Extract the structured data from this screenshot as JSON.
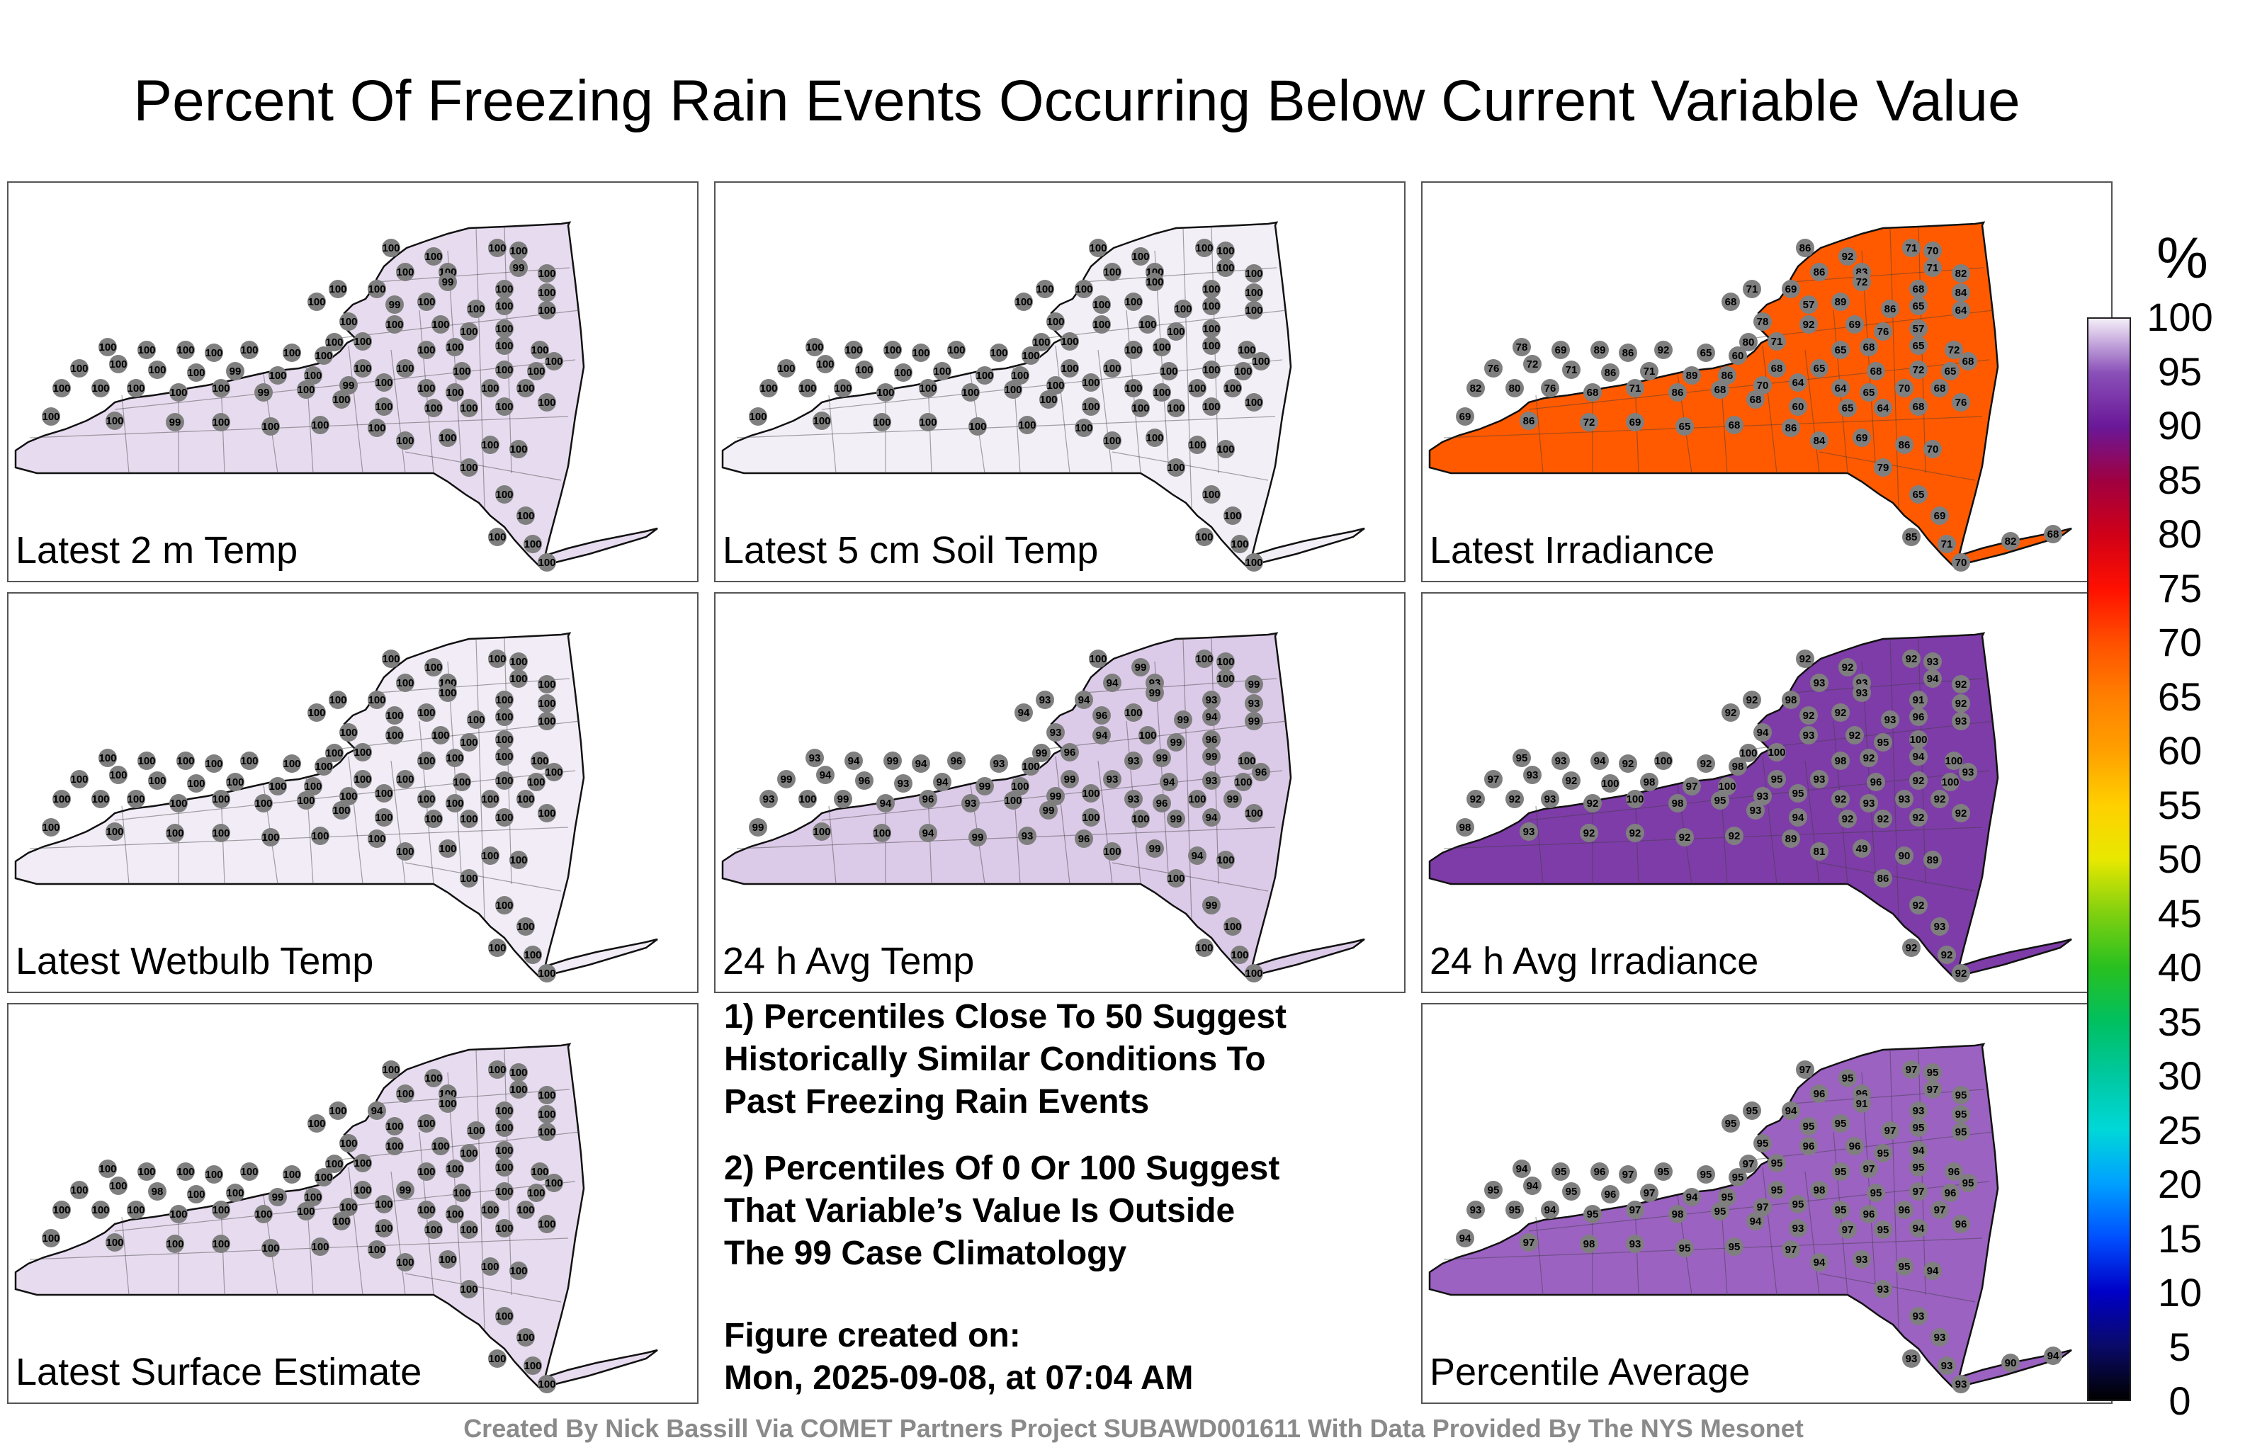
{
  "header": {
    "title": "Percent Of Freezing Rain Events Occurring Below Current Variable Value"
  },
  "panels": [
    {
      "label": "Latest 2 m Temp",
      "fill": "#e7dcef",
      "values": [
        100,
        100,
        100,
        100,
        100,
        100,
        99,
        100,
        100,
        100,
        99,
        100,
        100,
        100,
        99,
        100,
        100,
        100,
        100,
        100,
        100,
        100,
        100,
        100,
        100,
        100,
        100,
        100,
        100,
        100,
        100,
        100,
        100,
        100,
        100,
        100,
        100,
        100,
        100,
        100,
        100,
        100,
        100,
        100,
        100,
        100,
        100,
        99,
        100,
        100,
        99,
        100,
        100,
        100,
        100,
        100,
        100,
        100,
        100,
        100,
        100,
        99,
        100,
        100,
        100,
        100,
        100,
        100,
        100,
        100,
        100,
        99,
        100,
        100,
        100,
        100,
        100,
        100,
        100,
        100,
        100,
        100,
        100,
        100,
        100,
        100
      ]
    },
    {
      "label": "Latest 5 cm Soil Temp",
      "fill": "#f3eff7",
      "values": [
        100,
        100,
        100,
        100,
        100,
        100,
        100,
        100,
        100,
        100,
        100,
        100,
        100,
        100,
        100,
        100,
        100,
        100,
        100,
        100,
        100,
        100,
        100,
        100,
        100,
        100,
        100,
        100,
        100,
        100,
        100,
        100,
        100,
        100,
        100,
        100,
        100,
        100,
        100,
        100,
        100,
        100,
        100,
        100,
        100,
        100,
        100,
        100,
        100,
        100,
        100,
        100,
        100,
        100,
        100,
        100,
        100,
        100,
        100,
        100,
        100,
        100,
        100,
        100,
        100,
        100,
        100,
        100,
        100,
        100,
        100,
        100,
        100,
        100,
        100,
        100,
        100,
        100,
        100,
        100,
        100,
        100,
        100,
        100,
        100,
        100
      ]
    },
    {
      "label": "Latest Irradiance",
      "fill": "#ff5a00",
      "values": [
        86,
        92,
        71,
        70,
        86,
        83,
        71,
        82,
        71,
        69,
        72,
        68,
        84,
        68,
        57,
        89,
        86,
        65,
        64,
        78,
        92,
        69,
        76,
        57,
        80,
        71,
        65,
        68,
        65,
        72,
        68,
        78,
        69,
        89,
        86,
        92,
        65,
        60,
        68,
        65,
        68,
        72,
        65,
        76,
        72,
        71,
        86,
        71,
        89,
        86,
        70,
        64,
        64,
        65,
        70,
        68,
        82,
        80,
        76,
        68,
        71,
        86,
        68,
        68,
        60,
        65,
        64,
        68,
        76,
        69,
        86,
        72,
        69,
        65,
        68,
        86,
        84,
        69,
        86,
        70,
        79,
        65,
        69,
        85,
        71,
        70,
        82,
        68
      ]
    },
    {
      "label": "Latest Wetbulb Temp",
      "fill": "#f1ecf6",
      "values": [
        100,
        100,
        100,
        100,
        100,
        100,
        100,
        100,
        100,
        100,
        100,
        100,
        100,
        100,
        100,
        100,
        100,
        100,
        100,
        100,
        100,
        100,
        100,
        100,
        100,
        100,
        100,
        100,
        100,
        100,
        100,
        100,
        100,
        100,
        100,
        100,
        100,
        100,
        100,
        100,
        100,
        100,
        100,
        100,
        100,
        100,
        100,
        100,
        100,
        100,
        100,
        100,
        100,
        100,
        100,
        100,
        100,
        100,
        100,
        100,
        100,
        100,
        100,
        100,
        100,
        100,
        100,
        100,
        100,
        100,
        100,
        100,
        100,
        100,
        100,
        100,
        100,
        100,
        100,
        100,
        100,
        100,
        100,
        100,
        100,
        100
      ]
    },
    {
      "label": "24 h Avg Temp",
      "fill": "#dccbe8",
      "values": [
        100,
        99,
        100,
        100,
        94,
        93,
        100,
        99,
        93,
        94,
        99,
        93,
        93,
        94,
        96,
        100,
        99,
        94,
        99,
        93,
        94,
        100,
        99,
        96,
        99,
        96,
        93,
        99,
        99,
        100,
        96,
        93,
        94,
        99,
        94,
        96,
        93,
        100,
        99,
        93,
        94,
        93,
        100,
        99,
        94,
        96,
        93,
        94,
        99,
        100,
        99,
        100,
        93,
        96,
        100,
        99,
        93,
        100,
        99,
        94,
        96,
        93,
        100,
        99,
        100,
        100,
        99,
        94,
        100,
        99,
        100,
        100,
        94,
        99,
        93,
        96,
        100,
        99,
        94,
        100,
        100,
        99,
        100,
        100,
        100,
        100
      ]
    },
    {
      "label": "24 h Avg Irradiance",
      "fill": "#7e3ca8",
      "values": [
        92,
        92,
        92,
        93,
        93,
        93,
        94,
        92,
        92,
        98,
        93,
        91,
        92,
        92,
        92,
        92,
        93,
        96,
        93,
        94,
        93,
        92,
        95,
        100,
        100,
        100,
        98,
        92,
        94,
        100,
        93,
        95,
        93,
        94,
        92,
        100,
        92,
        98,
        95,
        93,
        96,
        92,
        100,
        97,
        93,
        92,
        100,
        98,
        97,
        100,
        93,
        95,
        92,
        93,
        93,
        92,
        92,
        92,
        93,
        92,
        100,
        98,
        95,
        93,
        94,
        92,
        92,
        92,
        92,
        98,
        93,
        92,
        92,
        92,
        92,
        89,
        81,
        49,
        90,
        89,
        86,
        92,
        93,
        92,
        92,
        92
      ]
    },
    {
      "label": "Latest Surface Estimate",
      "fill": "#e7dcef",
      "values": [
        100,
        100,
        100,
        100,
        100,
        100,
        100,
        100,
        100,
        94,
        100,
        100,
        100,
        100,
        100,
        100,
        100,
        100,
        100,
        100,
        100,
        100,
        100,
        100,
        100,
        100,
        100,
        100,
        100,
        100,
        100,
        100,
        100,
        100,
        100,
        100,
        100,
        100,
        100,
        99,
        100,
        100,
        100,
        100,
        100,
        98,
        100,
        100,
        99,
        100,
        100,
        100,
        100,
        100,
        100,
        100,
        100,
        100,
        100,
        100,
        100,
        100,
        100,
        100,
        100,
        100,
        100,
        100,
        100,
        100,
        100,
        100,
        100,
        100,
        100,
        100,
        100,
        100,
        100,
        100,
        100,
        100,
        100,
        100,
        100,
        100
      ]
    },
    {
      "label": "Percentile Average",
      "fill": "#9b62c2",
      "values": [
        97,
        95,
        97,
        95,
        96,
        96,
        97,
        95,
        95,
        94,
        91,
        93,
        95,
        95,
        95,
        95,
        97,
        95,
        95,
        95,
        96,
        96,
        95,
        94,
        97,
        95,
        95,
        97,
        95,
        96,
        95,
        94,
        95,
        96,
        97,
        95,
        95,
        95,
        95,
        98,
        95,
        97,
        96,
        95,
        94,
        95,
        96,
        97,
        94,
        95,
        97,
        95,
        95,
        96,
        96,
        97,
        93,
        95,
        94,
        95,
        97,
        98,
        95,
        94,
        93,
        97,
        95,
        94,
        96,
        94,
        97,
        98,
        93,
        95,
        95,
        97,
        94,
        93,
        95,
        94,
        93,
        93,
        93,
        93,
        93,
        93,
        90,
        94
      ]
    }
  ],
  "notes": {
    "line1a": "1) Percentiles Close To 50 Suggest",
    "line1b": "Historically Similar Conditions To",
    "line1c": "Past Freezing Rain Events",
    "line2a": "2) Percentiles Of 0 Or 100 Suggest",
    "line2b": "That Variable’s Value Is Outside",
    "line2c": "The 99 Case Climatology",
    "created_label": "Figure created on:",
    "created_value": "Mon, 2025-09-08, at 07:04 AM"
  },
  "colorbar": {
    "unit": "%",
    "ticks": [
      "100",
      "95",
      "90",
      "85",
      "80",
      "75",
      "70",
      "65",
      "60",
      "55",
      "50",
      "45",
      "40",
      "35",
      "30",
      "25",
      "20",
      "15",
      "10",
      "5",
      "0"
    ]
  },
  "footer": {
    "credit": "Created By Nick Bassill Via COMET Partners Project SUBAWD001611 With Data Provided By The NYS Mesonet"
  }
}
